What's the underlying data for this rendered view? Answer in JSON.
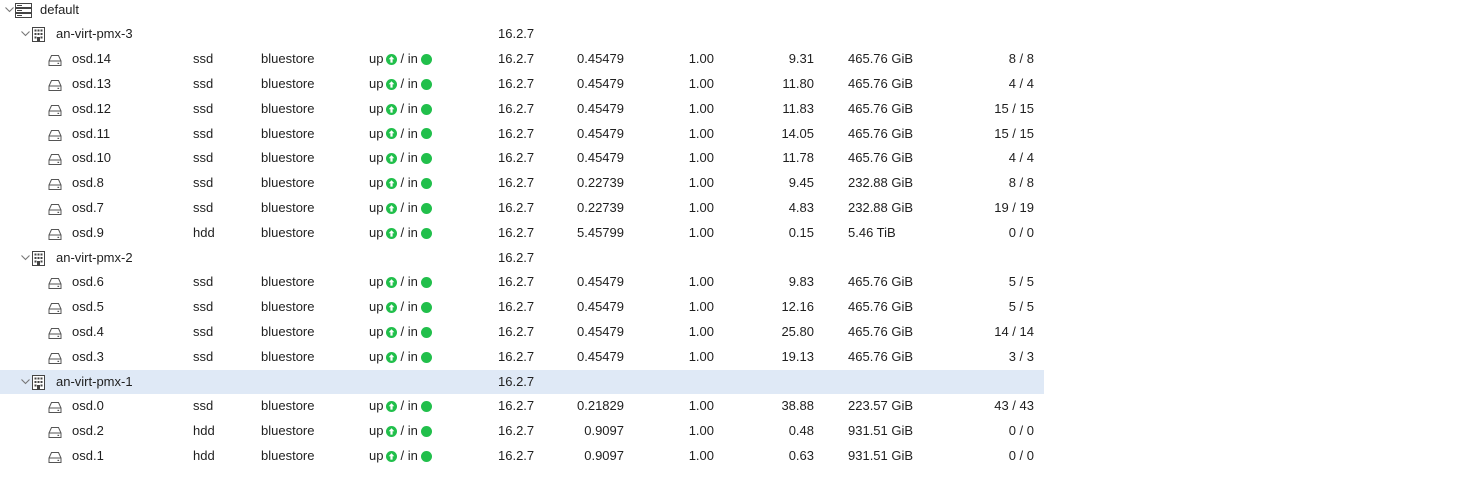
{
  "tree": {
    "root": {
      "name": "default",
      "icon": "server-rack-icon"
    },
    "hosts": [
      {
        "name": "an-virt-pmx-3",
        "version": "16.2.7",
        "selected": false,
        "osds": [
          {
            "name": "osd.14",
            "class": "ssd",
            "type": "bluestore",
            "state_up": "up",
            "state_in": "/ in",
            "version": "16.2.7",
            "weight": "0.45479",
            "reweight": "1.00",
            "apply_latency": "9.31",
            "size": "465.76 GiB",
            "pgs": "8 / 8"
          },
          {
            "name": "osd.13",
            "class": "ssd",
            "type": "bluestore",
            "state_up": "up",
            "state_in": "/ in",
            "version": "16.2.7",
            "weight": "0.45479",
            "reweight": "1.00",
            "apply_latency": "11.80",
            "size": "465.76 GiB",
            "pgs": "4 / 4"
          },
          {
            "name": "osd.12",
            "class": "ssd",
            "type": "bluestore",
            "state_up": "up",
            "state_in": "/ in",
            "version": "16.2.7",
            "weight": "0.45479",
            "reweight": "1.00",
            "apply_latency": "11.83",
            "size": "465.76 GiB",
            "pgs": "15 / 15"
          },
          {
            "name": "osd.11",
            "class": "ssd",
            "type": "bluestore",
            "state_up": "up",
            "state_in": "/ in",
            "version": "16.2.7",
            "weight": "0.45479",
            "reweight": "1.00",
            "apply_latency": "14.05",
            "size": "465.76 GiB",
            "pgs": "15 / 15"
          },
          {
            "name": "osd.10",
            "class": "ssd",
            "type": "bluestore",
            "state_up": "up",
            "state_in": "/ in",
            "version": "16.2.7",
            "weight": "0.45479",
            "reweight": "1.00",
            "apply_latency": "11.78",
            "size": "465.76 GiB",
            "pgs": "4 / 4"
          },
          {
            "name": "osd.8",
            "class": "ssd",
            "type": "bluestore",
            "state_up": "up",
            "state_in": "/ in",
            "version": "16.2.7",
            "weight": "0.22739",
            "reweight": "1.00",
            "apply_latency": "9.45",
            "size": "232.88 GiB",
            "pgs": "8 / 8"
          },
          {
            "name": "osd.7",
            "class": "ssd",
            "type": "bluestore",
            "state_up": "up",
            "state_in": "/ in",
            "version": "16.2.7",
            "weight": "0.22739",
            "reweight": "1.00",
            "apply_latency": "4.83",
            "size": "232.88 GiB",
            "pgs": "19 / 19"
          },
          {
            "name": "osd.9",
            "class": "hdd",
            "type": "bluestore",
            "state_up": "up",
            "state_in": "/ in",
            "version": "16.2.7",
            "weight": "5.45799",
            "reweight": "1.00",
            "apply_latency": "0.15",
            "size": "5.46 TiB",
            "pgs": "0 / 0"
          }
        ]
      },
      {
        "name": "an-virt-pmx-2",
        "version": "16.2.7",
        "selected": false,
        "osds": [
          {
            "name": "osd.6",
            "class": "ssd",
            "type": "bluestore",
            "state_up": "up",
            "state_in": "/ in",
            "version": "16.2.7",
            "weight": "0.45479",
            "reweight": "1.00",
            "apply_latency": "9.83",
            "size": "465.76 GiB",
            "pgs": "5 / 5"
          },
          {
            "name": "osd.5",
            "class": "ssd",
            "type": "bluestore",
            "state_up": "up",
            "state_in": "/ in",
            "version": "16.2.7",
            "weight": "0.45479",
            "reweight": "1.00",
            "apply_latency": "12.16",
            "size": "465.76 GiB",
            "pgs": "5 / 5"
          },
          {
            "name": "osd.4",
            "class": "ssd",
            "type": "bluestore",
            "state_up": "up",
            "state_in": "/ in",
            "version": "16.2.7",
            "weight": "0.45479",
            "reweight": "1.00",
            "apply_latency": "25.80",
            "size": "465.76 GiB",
            "pgs": "14 / 14"
          },
          {
            "name": "osd.3",
            "class": "ssd",
            "type": "bluestore",
            "state_up": "up",
            "state_in": "/ in",
            "version": "16.2.7",
            "weight": "0.45479",
            "reweight": "1.00",
            "apply_latency": "19.13",
            "size": "465.76 GiB",
            "pgs": "3 / 3"
          }
        ]
      },
      {
        "name": "an-virt-pmx-1",
        "version": "16.2.7",
        "selected": true,
        "osds": [
          {
            "name": "osd.0",
            "class": "ssd",
            "type": "bluestore",
            "state_up": "up",
            "state_in": "/ in",
            "version": "16.2.7",
            "weight": "0.21829",
            "reweight": "1.00",
            "apply_latency": "38.88",
            "size": "223.57 GiB",
            "pgs": "43 / 43"
          },
          {
            "name": "osd.2",
            "class": "hdd",
            "type": "bluestore",
            "state_up": "up",
            "state_in": "/ in",
            "version": "16.2.7",
            "weight": "0.9097",
            "reweight": "1.00",
            "apply_latency": "0.48",
            "size": "931.51 GiB",
            "pgs": "0 / 0"
          },
          {
            "name": "osd.1",
            "class": "hdd",
            "type": "bluestore",
            "state_up": "up",
            "state_in": "/ in",
            "version": "16.2.7",
            "weight": "0.9097",
            "reweight": "1.00",
            "apply_latency": "0.63",
            "size": "931.51 GiB",
            "pgs": "0 / 0"
          }
        ]
      }
    ]
  },
  "colors": {
    "status_green": "#21bf4b",
    "selection": "#dfe9f6",
    "icon": "#555555"
  }
}
